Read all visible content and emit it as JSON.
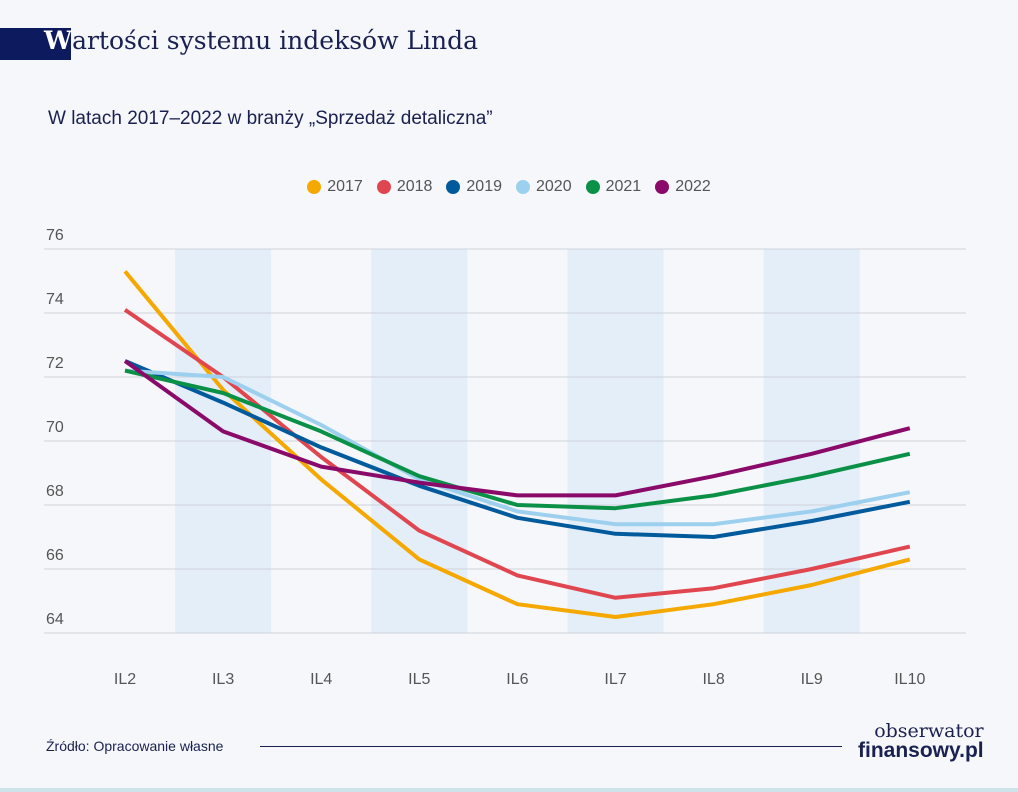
{
  "header": {
    "title_first": "W",
    "title_rest": "artości systemu indeksów Linda",
    "subtitle": "W latach 2017–2022 w branży „Sprzedaż detaliczna”"
  },
  "chart_data": {
    "type": "line",
    "title": "Wartości systemu indeksów Linda",
    "subtitle": "W latach 2017–2022 w branży „Sprzedaż detaliczna”",
    "categories": [
      "IL2",
      "IL3",
      "IL4",
      "IL5",
      "IL6",
      "IL7",
      "IL8",
      "IL9",
      "IL10"
    ],
    "ylim": [
      64,
      76
    ],
    "yticks": [
      64,
      66,
      68,
      70,
      72,
      74,
      76
    ],
    "grid": true,
    "legend": "top-center",
    "series": [
      {
        "name": "2017",
        "color": "#f5a800",
        "values": [
          75.3,
          71.6,
          68.8,
          66.3,
          64.9,
          64.5,
          64.9,
          65.5,
          66.3
        ]
      },
      {
        "name": "2018",
        "color": "#e0464f",
        "values": [
          74.1,
          72.0,
          69.5,
          67.2,
          65.8,
          65.1,
          65.4,
          66.0,
          66.7
        ]
      },
      {
        "name": "2019",
        "color": "#005a9c",
        "values": [
          72.5,
          71.2,
          69.8,
          68.6,
          67.6,
          67.1,
          67.0,
          67.5,
          68.1
        ]
      },
      {
        "name": "2020",
        "color": "#9dd0ee",
        "values": [
          72.2,
          72.0,
          70.5,
          68.8,
          67.8,
          67.4,
          67.4,
          67.8,
          68.4
        ]
      },
      {
        "name": "2021",
        "color": "#0a9147",
        "values": [
          72.2,
          71.5,
          70.3,
          68.9,
          68.0,
          67.9,
          68.3,
          68.9,
          69.6
        ]
      },
      {
        "name": "2022",
        "color": "#8a0a6a",
        "values": [
          72.5,
          70.3,
          69.2,
          68.7,
          68.3,
          68.3,
          68.9,
          69.6,
          70.4
        ]
      }
    ]
  },
  "footer": {
    "source": "Źródło: Opracowanie własne",
    "logo_line1": "obserwator",
    "logo_line2": "finansowy.pl"
  }
}
